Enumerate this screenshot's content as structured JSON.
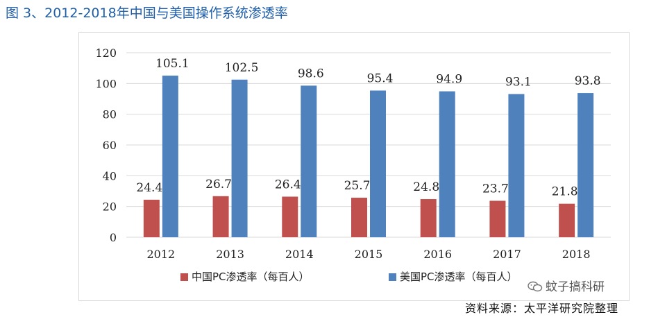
{
  "figure": {
    "title": "图 3、2012-2018年中国与美国操作系统渗透率"
  },
  "watermark": {
    "text": "蚊子搞科研",
    "icon": "wechat-icon"
  },
  "source": {
    "text": "资料来源：太平洋研究院整理"
  },
  "chart_data": {
    "type": "bar",
    "title": "",
    "xlabel": "",
    "ylabel": "",
    "categories": [
      "2012",
      "2013",
      "2014",
      "2015",
      "2016",
      "2017",
      "2018"
    ],
    "ylim": [
      0,
      120
    ],
    "yticks": [
      0,
      20,
      40,
      60,
      80,
      100,
      120
    ],
    "grid": true,
    "legend_position": "bottom",
    "series": [
      {
        "name": "中国PC渗透率（每百人）",
        "color": "#c0504d",
        "values": [
          24.4,
          26.7,
          26.4,
          25.7,
          24.8,
          23.7,
          21.8
        ],
        "labels": [
          "24.4",
          "26.7",
          "26.4",
          "25.7",
          "24.8",
          "23.7",
          "21.8"
        ]
      },
      {
        "name": "美国PC渗透率（每百人）",
        "color": "#4f81bd",
        "values": [
          105.1,
          102.5,
          98.6,
          95.4,
          94.9,
          93.1,
          93.8
        ],
        "labels": [
          "105.1",
          "102.5",
          "98.6",
          "95.4",
          "94.9",
          "93.1",
          "93.8"
        ]
      }
    ]
  }
}
